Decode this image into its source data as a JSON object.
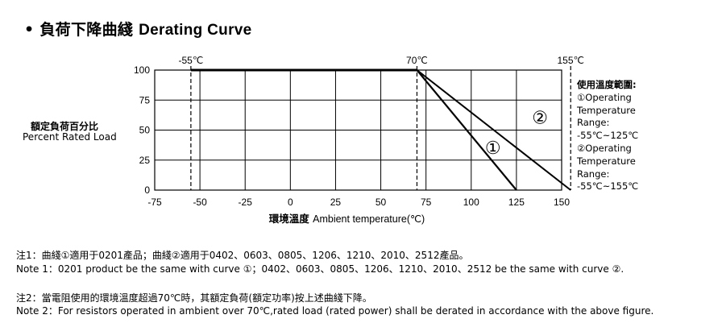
{
  "heading": {
    "zh": "負荷下降曲綫",
    "en": "Derating Curve"
  },
  "chart_data": {
    "type": "line",
    "title": "Derating Curve",
    "xlabel_zh": "環境溫度",
    "xlabel_en": "Ambient temperature(℃)",
    "ylabel_zh": "額定負荷百分比",
    "ylabel_en": "Percent Rated Load",
    "xlim": [
      -75,
      150
    ],
    "ylim": [
      0,
      100
    ],
    "x_ticks": [
      "-75",
      "-50",
      "-25",
      "0",
      "25",
      "50",
      "75",
      "100",
      "125",
      "150"
    ],
    "y_ticks": [
      "100",
      "75",
      "50",
      "25",
      "0"
    ],
    "grid": true,
    "reference_markers": [
      {
        "x": -55,
        "label": "-55℃"
      },
      {
        "x": 70,
        "label": "70℃"
      },
      {
        "x": 155,
        "label": "155℃"
      }
    ],
    "series": [
      {
        "name": "①",
        "x": [
          -55,
          70,
          125
        ],
        "y": [
          100,
          100,
          0
        ],
        "label_at": [
          112,
          35
        ]
      },
      {
        "name": "②",
        "x": [
          -55,
          70,
          155
        ],
        "y": [
          100,
          100,
          0
        ],
        "label_at": [
          138,
          60
        ]
      }
    ]
  },
  "legend": {
    "title": "使用溫度範圍:",
    "lines": [
      "①Operating",
      "Temperature",
      "Range:",
      "-55℃~125℃",
      "②Operating",
      "Temperature",
      "Range:",
      "-55℃~155℃"
    ]
  },
  "notes": {
    "note1_zh": "注1：曲綫①適用于0201產品；曲綫②適用于0402、0603、0805、1206、1210、2010、2512產品。",
    "note1_en": "Note 1：0201 product be the same with curve ①；0402、0603、0805、1206、1210、2010、2512 be the same with curve ②.",
    "note2_zh": "注2：當電阻使用的環境溫度超過70℃時，其額定負荷(額定功率)按上述曲綫下降。",
    "note2_en": "Note 2：For resistors operated in ambient over 70℃,rated load (rated power) shall be derated in accordance with the above figure."
  }
}
